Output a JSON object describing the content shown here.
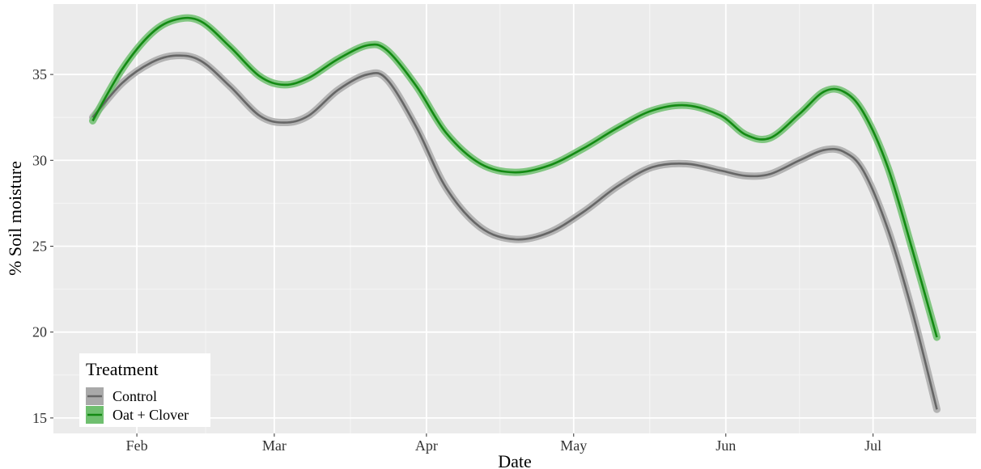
{
  "chart_data": {
    "type": "line",
    "xlabel": "Date",
    "ylabel": "% Soil moisture",
    "x_ticks": [
      {
        "date": "2021-02-01",
        "label": "Feb"
      },
      {
        "date": "2021-03-01",
        "label": "Mar"
      },
      {
        "date": "2021-04-01",
        "label": "Apr"
      },
      {
        "date": "2021-05-01",
        "label": "May"
      },
      {
        "date": "2021-06-01",
        "label": "Jun"
      },
      {
        "date": "2021-07-01",
        "label": "Jul"
      }
    ],
    "xlim": [
      "2021-01-15",
      "2021-07-22"
    ],
    "y_ticks": [
      15,
      20,
      25,
      30,
      35
    ],
    "ylim": [
      14.1,
      39.1
    ],
    "grid": true,
    "legend": {
      "title": "Treatment",
      "position": "bottom-left"
    },
    "series": [
      {
        "name": "Control",
        "color": "#666666",
        "ribbon_color": "#a9a9a9",
        "points": [
          {
            "x": "2021-01-23",
            "y": 32.5
          },
          {
            "x": "2021-01-29",
            "y": 34.5
          },
          {
            "x": "2021-02-04",
            "y": 35.7
          },
          {
            "x": "2021-02-09",
            "y": 36.1
          },
          {
            "x": "2021-02-14",
            "y": 35.8
          },
          {
            "x": "2021-02-20",
            "y": 34.3
          },
          {
            "x": "2021-02-26",
            "y": 32.6
          },
          {
            "x": "2021-03-03",
            "y": 32.2
          },
          {
            "x": "2021-03-08",
            "y": 32.6
          },
          {
            "x": "2021-03-14",
            "y": 34.1
          },
          {
            "x": "2021-03-20",
            "y": 35.0
          },
          {
            "x": "2021-03-24",
            "y": 34.7
          },
          {
            "x": "2021-03-30",
            "y": 31.9
          },
          {
            "x": "2021-04-05",
            "y": 28.4
          },
          {
            "x": "2021-04-12",
            "y": 26.1
          },
          {
            "x": "2021-04-19",
            "y": 25.4
          },
          {
            "x": "2021-04-26",
            "y": 25.8
          },
          {
            "x": "2021-05-03",
            "y": 27.0
          },
          {
            "x": "2021-05-10",
            "y": 28.5
          },
          {
            "x": "2021-05-17",
            "y": 29.6
          },
          {
            "x": "2021-05-24",
            "y": 29.8
          },
          {
            "x": "2021-05-31",
            "y": 29.4
          },
          {
            "x": "2021-06-05",
            "y": 29.1
          },
          {
            "x": "2021-06-10",
            "y": 29.2
          },
          {
            "x": "2021-06-16",
            "y": 30.0
          },
          {
            "x": "2021-06-21",
            "y": 30.6
          },
          {
            "x": "2021-06-25",
            "y": 30.5
          },
          {
            "x": "2021-06-29",
            "y": 29.4
          },
          {
            "x": "2021-07-04",
            "y": 26.0
          },
          {
            "x": "2021-07-09",
            "y": 21.2
          },
          {
            "x": "2021-07-14",
            "y": 15.5
          }
        ]
      },
      {
        "name": "Oat + Clover",
        "color": "#138a13",
        "ribbon_color": "#6fbf6f",
        "points": [
          {
            "x": "2021-01-23",
            "y": 32.3
          },
          {
            "x": "2021-01-29",
            "y": 35.3
          },
          {
            "x": "2021-02-04",
            "y": 37.4
          },
          {
            "x": "2021-02-09",
            "y": 38.2
          },
          {
            "x": "2021-02-14",
            "y": 38.1
          },
          {
            "x": "2021-02-20",
            "y": 36.6
          },
          {
            "x": "2021-02-26",
            "y": 34.9
          },
          {
            "x": "2021-03-03",
            "y": 34.4
          },
          {
            "x": "2021-03-08",
            "y": 34.8
          },
          {
            "x": "2021-03-14",
            "y": 35.9
          },
          {
            "x": "2021-03-20",
            "y": 36.7
          },
          {
            "x": "2021-03-24",
            "y": 36.4
          },
          {
            "x": "2021-03-30",
            "y": 34.3
          },
          {
            "x": "2021-04-05",
            "y": 31.6
          },
          {
            "x": "2021-04-12",
            "y": 29.8
          },
          {
            "x": "2021-04-19",
            "y": 29.3
          },
          {
            "x": "2021-04-26",
            "y": 29.7
          },
          {
            "x": "2021-05-03",
            "y": 30.7
          },
          {
            "x": "2021-05-10",
            "y": 31.9
          },
          {
            "x": "2021-05-17",
            "y": 32.9
          },
          {
            "x": "2021-05-24",
            "y": 33.2
          },
          {
            "x": "2021-05-31",
            "y": 32.6
          },
          {
            "x": "2021-06-05",
            "y": 31.5
          },
          {
            "x": "2021-06-10",
            "y": 31.3
          },
          {
            "x": "2021-06-16",
            "y": 32.7
          },
          {
            "x": "2021-06-21",
            "y": 34.0
          },
          {
            "x": "2021-06-25",
            "y": 34.0
          },
          {
            "x": "2021-06-29",
            "y": 32.8
          },
          {
            "x": "2021-07-04",
            "y": 29.6
          },
          {
            "x": "2021-07-09",
            "y": 24.8
          },
          {
            "x": "2021-07-14",
            "y": 19.7
          }
        ]
      }
    ]
  }
}
